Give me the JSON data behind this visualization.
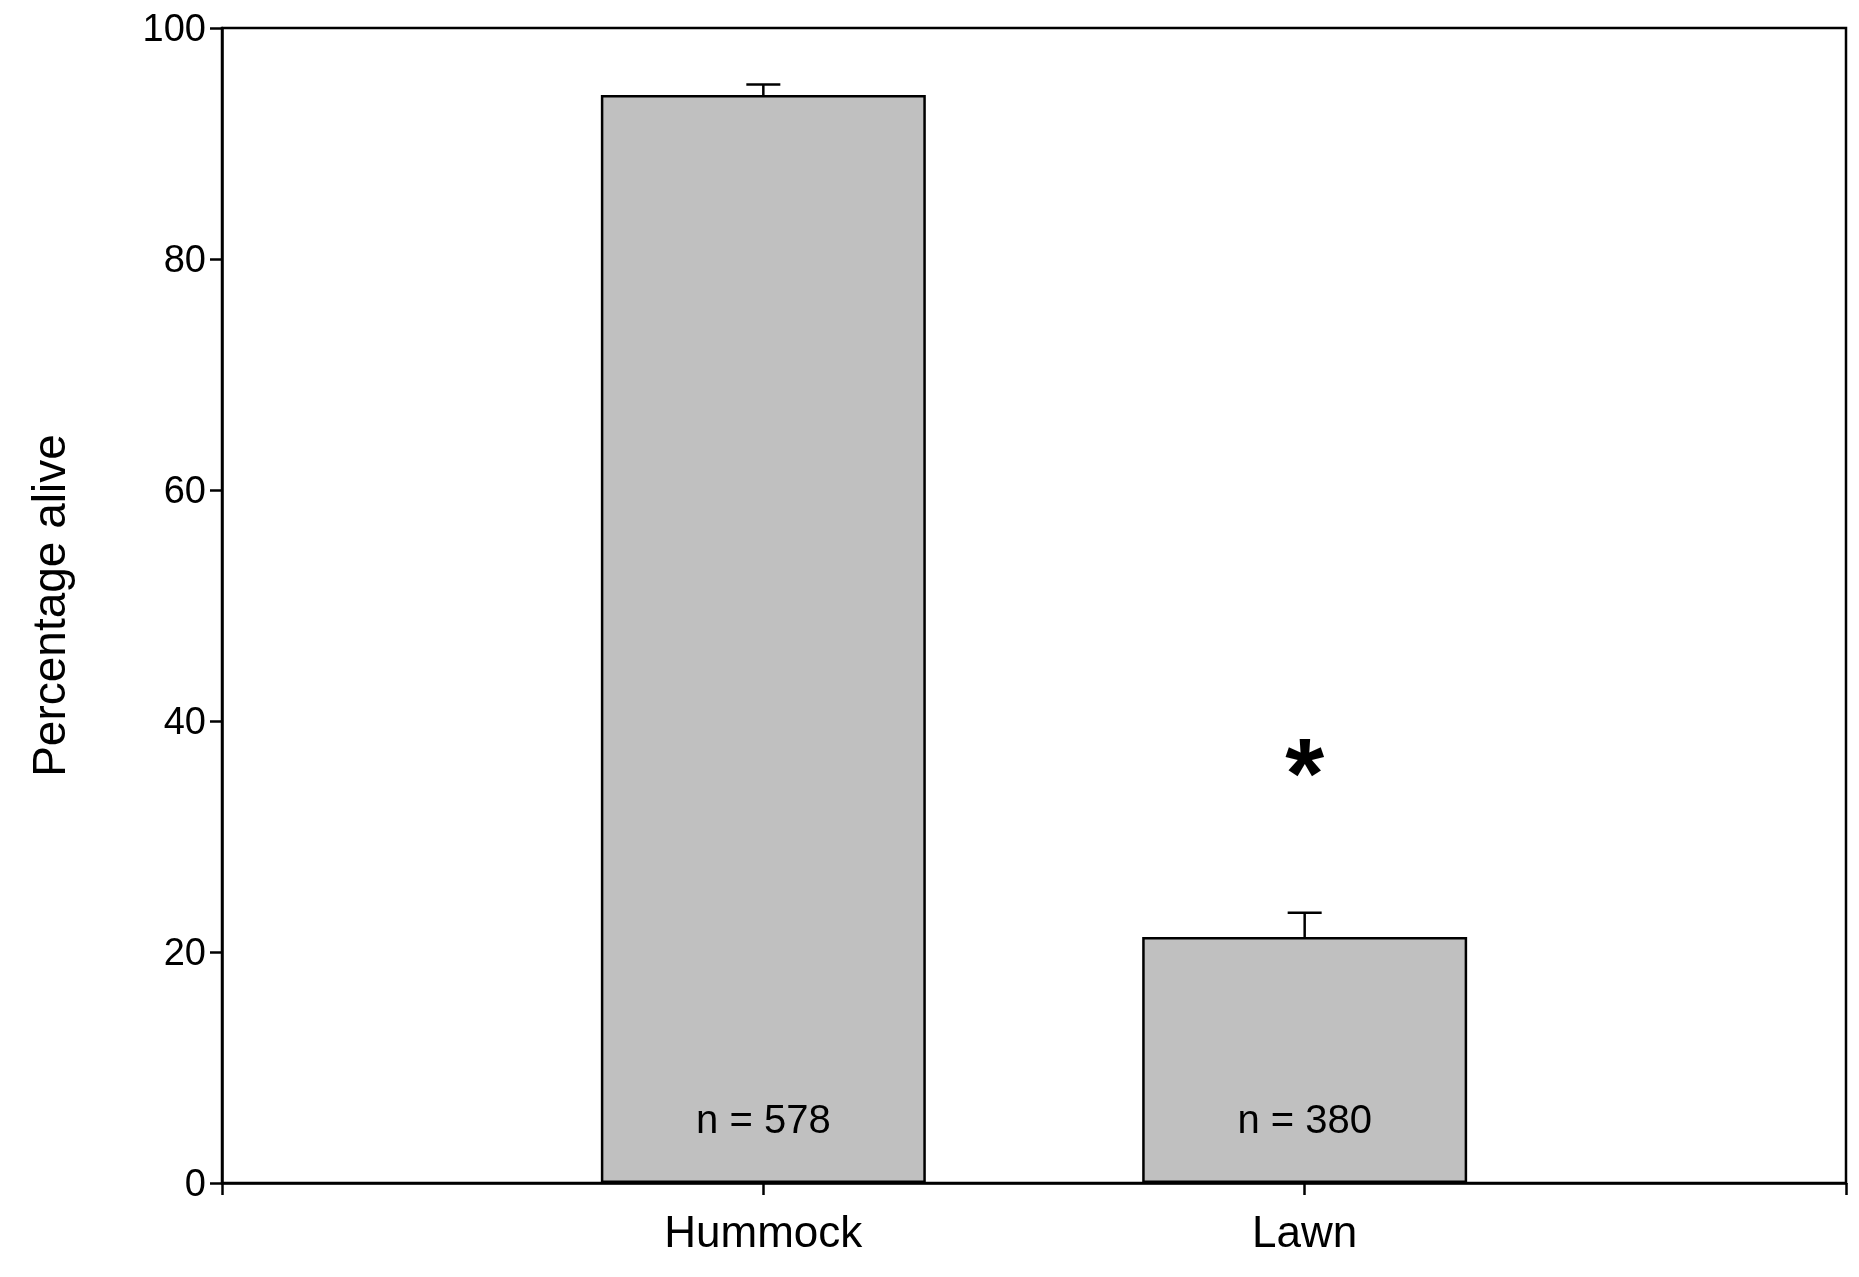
{
  "chart_data": {
    "type": "bar",
    "ylabel": "Percentage alive",
    "categories": [
      "Hummock",
      "Lawn"
    ],
    "values": [
      94.2,
      21.3
    ],
    "errors": [
      0.9,
      2.1
    ],
    "color": "#c0c0c0",
    "ylim": [
      0,
      100
    ],
    "yticks": [
      0,
      20,
      40,
      60,
      80,
      100
    ],
    "grid": false,
    "annotations": [
      "n = 578",
      "n = 380",
      "*"
    ]
  }
}
